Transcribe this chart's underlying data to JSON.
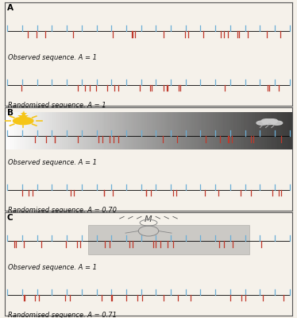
{
  "panel_A_label": "A",
  "panel_B_label": "B",
  "panel_C_label": "C",
  "obs_label_A": "Observed sequence. A = 1",
  "rand_label_A": "Randomised sequence. A = 1",
  "obs_label_B": "Observed sequence. A = 1",
  "rand_label_B": "Randomised sequence. A = 0.70",
  "obs_label_C": "Observed sequence. A = 1",
  "rand_label_C": "Randomised sequence. A = 0.71",
  "blue_color": "#6baed6",
  "red_color": "#c0392b",
  "bg_color": "#f5f1ea",
  "white_color": "#ffffff",
  "border_color": "#666666",
  "tick_up": 0.06,
  "tick_dn": 0.06,
  "n_ticks": 20,
  "label_fontsize": 6.0,
  "panel_label_fontsize": 7.5
}
